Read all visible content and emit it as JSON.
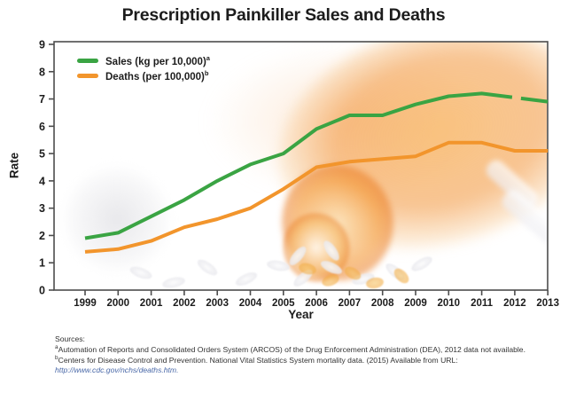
{
  "title": "Prescription Painkiller Sales and Deaths",
  "legend": {
    "items": [
      {
        "label": "Sales (kg per 10,000)",
        "sup": "a",
        "color": "#3aa443"
      },
      {
        "label": "Deaths (per 100,000)",
        "sup": "b",
        "color": "#f2952c"
      }
    ]
  },
  "chart_data": {
    "type": "line",
    "x": [
      1999,
      2000,
      2001,
      2002,
      2003,
      2004,
      2005,
      2006,
      2007,
      2008,
      2009,
      2010,
      2011,
      2012,
      2013
    ],
    "series": [
      {
        "name": "Sales (kg per 10,000)",
        "color": "#3aa443",
        "values": [
          1.9,
          2.1,
          2.7,
          3.3,
          4.0,
          4.6,
          5.0,
          5.9,
          6.4,
          6.4,
          6.8,
          7.1,
          7.2,
          null,
          6.9
        ],
        "note": "2012 sales data not available - gap drawn in line"
      },
      {
        "name": "Deaths (per 100,000)",
        "color": "#f2952c",
        "values": [
          1.4,
          1.5,
          1.8,
          2.3,
          2.6,
          3.0,
          3.7,
          4.5,
          4.7,
          4.8,
          4.9,
          5.4,
          5.4,
          5.1,
          5.1
        ]
      }
    ],
    "xlabel": "Year",
    "ylabel": "Rate",
    "ylim": [
      0,
      9
    ],
    "yticks": [
      0,
      1,
      2,
      3,
      4,
      5,
      6,
      7,
      8,
      9
    ],
    "grid": false,
    "legend_position": "top-left"
  },
  "sources": {
    "heading": "Sources:",
    "note_a_sup": "a",
    "note_a_text": "Automation of Reports and Consolidated Orders System (ARCOS) of the Drug Enforcement Administration (DEA), 2012 data not available.",
    "note_b_sup": "b",
    "note_b_text": "Centers for Disease Control and Prevention. National Vital Statistics System mortality data. (2015) Available from URL:",
    "url": "http://www.cdc.gov/nchs/deaths.htm."
  },
  "colors": {
    "sales_line": "#3aa443",
    "deaths_line": "#f2952c",
    "frame": "#4d4d4d",
    "text": "#1c1c1c",
    "link": "#4a69a8"
  }
}
